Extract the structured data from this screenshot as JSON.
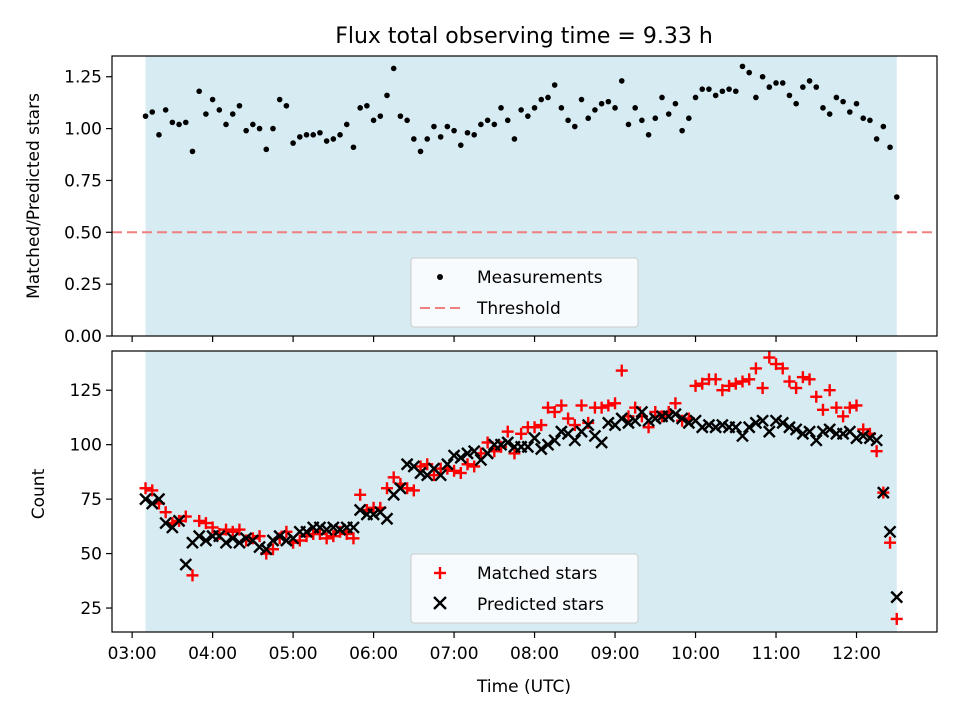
{
  "figure": {
    "title": "Flux total observing time = 9.33 h"
  },
  "colors": {
    "background": "#ffffff",
    "observing_window": "#add8e6",
    "measurements": "#000000",
    "threshold": "#f08080",
    "matched": "#ff0000",
    "predicted": "#000000"
  },
  "chart_data": [
    {
      "type": "scatter",
      "ylabel": "Matched/Predicted stars",
      "ylim": [
        0,
        1.35
      ],
      "yticks": [
        0.0,
        0.25,
        0.5,
        0.75,
        1.0,
        1.25
      ],
      "ytick_labels": [
        "0.00",
        "0.25",
        "0.50",
        "0.75",
        "1.00",
        "1.25"
      ],
      "xlim": [
        "02:45",
        "13:00"
      ],
      "xticks": [
        "03:00",
        "04:00",
        "05:00",
        "06:00",
        "07:00",
        "08:00",
        "09:00",
        "10:00",
        "11:00",
        "12:00"
      ],
      "x_ticklabels_shown": false,
      "observing_window": [
        "03:10",
        "12:30"
      ],
      "threshold": 0.5,
      "legend": [
        "Measurements",
        "Threshold"
      ],
      "legend_position": "lower center",
      "series": [
        {
          "name": "Measurements",
          "marker": "dot",
          "x": [
            "03:10",
            "03:15",
            "03:20",
            "03:25",
            "03:30",
            "03:35",
            "03:40",
            "03:45",
            "03:50",
            "03:55",
            "04:00",
            "04:05",
            "04:10",
            "04:15",
            "04:20",
            "04:25",
            "04:30",
            "04:35",
            "04:40",
            "04:45",
            "04:50",
            "04:55",
            "05:00",
            "05:05",
            "05:10",
            "05:15",
            "05:20",
            "05:25",
            "05:30",
            "05:35",
            "05:40",
            "05:45",
            "05:50",
            "05:55",
            "06:00",
            "06:05",
            "06:10",
            "06:15",
            "06:20",
            "06:25",
            "06:30",
            "06:35",
            "06:40",
            "06:45",
            "06:50",
            "06:55",
            "07:00",
            "07:05",
            "07:10",
            "07:15",
            "07:20",
            "07:25",
            "07:30",
            "07:35",
            "07:40",
            "07:45",
            "07:50",
            "07:55",
            "08:00",
            "08:05",
            "08:10",
            "08:15",
            "08:20",
            "08:25",
            "08:30",
            "08:35",
            "08:40",
            "08:45",
            "08:50",
            "08:55",
            "09:00",
            "09:05",
            "09:10",
            "09:15",
            "09:20",
            "09:25",
            "09:30",
            "09:35",
            "09:40",
            "09:45",
            "09:50",
            "09:55",
            "10:00",
            "10:05",
            "10:10",
            "10:15",
            "10:20",
            "10:25",
            "10:30",
            "10:35",
            "10:40",
            "10:45",
            "10:50",
            "10:55",
            "11:00",
            "11:05",
            "11:10",
            "11:15",
            "11:20",
            "11:25",
            "11:30",
            "11:35",
            "11:40",
            "11:45",
            "11:50",
            "11:55",
            "12:00",
            "12:05",
            "12:10",
            "12:15",
            "12:20",
            "12:25",
            "12:30"
          ],
          "y": [
            1.06,
            1.08,
            0.97,
            1.09,
            1.03,
            1.02,
            1.03,
            0.89,
            1.18,
            1.07,
            1.14,
            1.09,
            1.02,
            1.07,
            1.11,
            0.99,
            1.02,
            1.0,
            0.9,
            1.0,
            1.14,
            1.11,
            0.93,
            0.96,
            0.97,
            0.97,
            0.98,
            0.94,
            0.95,
            0.97,
            1.02,
            0.91,
            1.1,
            1.11,
            1.04,
            1.06,
            1.16,
            1.29,
            1.06,
            1.04,
            0.95,
            0.89,
            0.95,
            1.01,
            0.96,
            1.01,
            0.99,
            0.92,
            0.98,
            0.97,
            1.02,
            1.04,
            1.02,
            1.1,
            1.04,
            0.95,
            1.09,
            1.06,
            1.1,
            1.14,
            1.15,
            1.21,
            1.1,
            1.04,
            1.01,
            1.14,
            1.05,
            1.09,
            1.12,
            1.13,
            1.1,
            1.23,
            1.02,
            1.1,
            1.04,
            0.97,
            1.05,
            1.15,
            1.07,
            1.12,
            0.99,
            1.05,
            1.15,
            1.19,
            1.19,
            1.16,
            1.18,
            1.19,
            1.18,
            1.3,
            1.27,
            1.15,
            1.25,
            1.2,
            1.22,
            1.22,
            1.16,
            1.12,
            1.2,
            1.23,
            1.2,
            1.1,
            1.07,
            1.15,
            1.13,
            1.08,
            1.12,
            1.05,
            1.04,
            0.95,
            1.01,
            0.91,
            0.67
          ]
        }
      ]
    },
    {
      "type": "scatter",
      "xlabel": "Time (UTC)",
      "ylabel": "Count",
      "ylim": [
        14,
        143
      ],
      "yticks": [
        25,
        50,
        75,
        100,
        125
      ],
      "ytick_labels": [
        "25",
        "50",
        "75",
        "100",
        "125"
      ],
      "xlim": [
        "02:45",
        "13:00"
      ],
      "xticks": [
        "03:00",
        "04:00",
        "05:00",
        "06:00",
        "07:00",
        "08:00",
        "09:00",
        "10:00",
        "11:00",
        "12:00"
      ],
      "xtick_labels": [
        "03:00",
        "04:00",
        "05:00",
        "06:00",
        "07:00",
        "08:00",
        "09:00",
        "10:00",
        "11:00",
        "12:00"
      ],
      "observing_window": [
        "03:10",
        "12:30"
      ],
      "legend": [
        "Matched stars",
        "Predicted stars"
      ],
      "legend_position": "lower center",
      "series": [
        {
          "name": "Matched stars",
          "marker": "plus",
          "x": [
            "03:10",
            "03:15",
            "03:20",
            "03:25",
            "03:30",
            "03:35",
            "03:40",
            "03:45",
            "03:50",
            "03:55",
            "04:00",
            "04:05",
            "04:10",
            "04:15",
            "04:20",
            "04:25",
            "04:30",
            "04:35",
            "04:40",
            "04:45",
            "04:50",
            "04:55",
            "05:00",
            "05:05",
            "05:10",
            "05:15",
            "05:20",
            "05:25",
            "05:30",
            "05:35",
            "05:40",
            "05:45",
            "05:50",
            "05:55",
            "06:00",
            "06:05",
            "06:10",
            "06:15",
            "06:20",
            "06:25",
            "06:30",
            "06:35",
            "06:40",
            "06:45",
            "06:50",
            "06:55",
            "07:00",
            "07:05",
            "07:10",
            "07:15",
            "07:20",
            "07:25",
            "07:30",
            "07:35",
            "07:40",
            "07:45",
            "07:50",
            "07:55",
            "08:00",
            "08:05",
            "08:10",
            "08:15",
            "08:20",
            "08:25",
            "08:30",
            "08:35",
            "08:40",
            "08:45",
            "08:50",
            "08:55",
            "09:00",
            "09:05",
            "09:10",
            "09:15",
            "09:20",
            "09:25",
            "09:30",
            "09:35",
            "09:40",
            "09:45",
            "09:50",
            "09:55",
            "10:00",
            "10:05",
            "10:10",
            "10:15",
            "10:20",
            "10:25",
            "10:30",
            "10:35",
            "10:40",
            "10:45",
            "10:50",
            "10:55",
            "11:00",
            "11:05",
            "11:10",
            "11:15",
            "11:20",
            "11:25",
            "11:30",
            "11:35",
            "11:40",
            "11:45",
            "11:50",
            "11:55",
            "12:00",
            "12:05",
            "12:10",
            "12:15",
            "12:20",
            "12:25",
            "12:30"
          ],
          "y": [
            80,
            79,
            73,
            69,
            64,
            65,
            67,
            40,
            65,
            64,
            62,
            59,
            61,
            60,
            61,
            56,
            57,
            58,
            50,
            52,
            57,
            60,
            55,
            56,
            58,
            59,
            59,
            57,
            58,
            60,
            59,
            57,
            77,
            70,
            71,
            71,
            80,
            85,
            82,
            80,
            79,
            90,
            91,
            86,
            89,
            89,
            88,
            87,
            91,
            90,
            96,
            101,
            97,
            99,
            106,
            96,
            105,
            108,
            108,
            109,
            117,
            115,
            118,
            112,
            109,
            118,
            110,
            117,
            117,
            118,
            119,
            134,
            113,
            117,
            113,
            108,
            115,
            113,
            115,
            119,
            111,
            112,
            127,
            128,
            130,
            130,
            125,
            127,
            128,
            129,
            130,
            135,
            126,
            140,
            137,
            135,
            129,
            126,
            131,
            130,
            122,
            116,
            125,
            117,
            113,
            117,
            118,
            107,
            105,
            97,
            78,
            55,
            20
          ]
        },
        {
          "name": "Predicted stars",
          "marker": "x",
          "x": [
            "03:10",
            "03:15",
            "03:20",
            "03:25",
            "03:30",
            "03:35",
            "03:40",
            "03:45",
            "03:50",
            "03:55",
            "04:00",
            "04:05",
            "04:10",
            "04:15",
            "04:20",
            "04:25",
            "04:30",
            "04:35",
            "04:40",
            "04:45",
            "04:50",
            "04:55",
            "05:00",
            "05:05",
            "05:10",
            "05:15",
            "05:20",
            "05:25",
            "05:30",
            "05:35",
            "05:40",
            "05:45",
            "05:50",
            "05:55",
            "06:00",
            "06:05",
            "06:10",
            "06:15",
            "06:20",
            "06:25",
            "06:30",
            "06:35",
            "06:40",
            "06:45",
            "06:50",
            "06:55",
            "07:00",
            "07:05",
            "07:10",
            "07:15",
            "07:20",
            "07:25",
            "07:30",
            "07:35",
            "07:40",
            "07:45",
            "07:50",
            "07:55",
            "08:00",
            "08:05",
            "08:10",
            "08:15",
            "08:20",
            "08:25",
            "08:30",
            "08:35",
            "08:40",
            "08:45",
            "08:50",
            "08:55",
            "09:00",
            "09:05",
            "09:10",
            "09:15",
            "09:20",
            "09:25",
            "09:30",
            "09:35",
            "09:40",
            "09:45",
            "09:50",
            "09:55",
            "10:00",
            "10:05",
            "10:10",
            "10:15",
            "10:20",
            "10:25",
            "10:30",
            "10:35",
            "10:40",
            "10:45",
            "10:50",
            "10:55",
            "11:00",
            "11:05",
            "11:10",
            "11:15",
            "11:20",
            "11:25",
            "11:30",
            "11:35",
            "11:40",
            "11:45",
            "11:50",
            "11:55",
            "12:00",
            "12:05",
            "12:10",
            "12:15",
            "12:20",
            "12:25",
            "12:30"
          ],
          "y": [
            75,
            73,
            75,
            64,
            62,
            65,
            45,
            55,
            58,
            56,
            58,
            58,
            55,
            57,
            55,
            57,
            56,
            53,
            52,
            56,
            58,
            56,
            57,
            60,
            60,
            62,
            62,
            61,
            62,
            61,
            62,
            62,
            70,
            68,
            68,
            69,
            66,
            77,
            80,
            91,
            90,
            87,
            86,
            89,
            86,
            91,
            95,
            94,
            96,
            97,
            93,
            96,
            100,
            100,
            101,
            99,
            99,
            99,
            103,
            98,
            100,
            102,
            106,
            105,
            102,
            106,
            109,
            104,
            101,
            110,
            109,
            112,
            110,
            111,
            115,
            111,
            112,
            113,
            113,
            114,
            112,
            110,
            111,
            108,
            109,
            108,
            109,
            108,
            108,
            104,
            108,
            110,
            111,
            106,
            111,
            110,
            108,
            107,
            105,
            106,
            102,
            106,
            107,
            105,
            105,
            106,
            103,
            104,
            103,
            102,
            78,
            60,
            30
          ]
        }
      ]
    }
  ]
}
